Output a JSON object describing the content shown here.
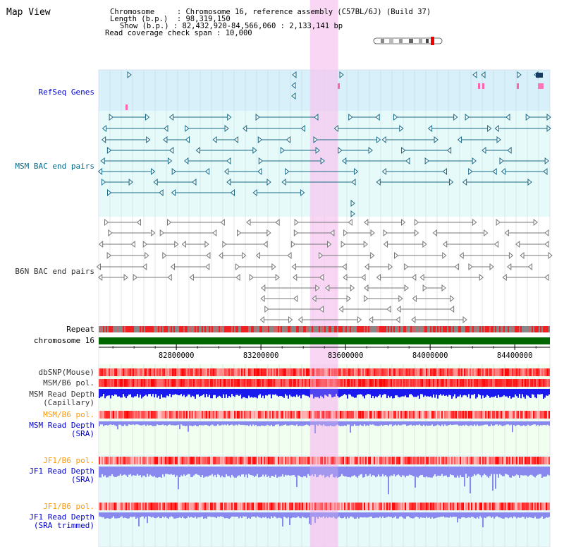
{
  "panel_title": "Map View",
  "info": {
    "chromosome_key": "Chromosome",
    "chromosome_value": "Chromosome 16, reference assembly (C57BL/6J) (Build 37)",
    "length_key": "Length (b.p.)",
    "length_value": "98,319,150",
    "show_key": "Show (b.p.)",
    "show_value": "82,432,920-84,566,060 : 2,133,141 bp",
    "coverage_key": "Read coverage check span",
    "coverage_value": "10,000"
  },
  "tracks": {
    "refseq": "RefSeq Genes",
    "msm_bac": "MSM BAC end pairs",
    "b6n_bac": "B6N BAC end pairs",
    "repeat": "Repeat",
    "chromosome": "chromosome 16",
    "dbsnp": "dbSNP(Mouse)",
    "msm_b6_pol_1": "MSM/B6 pol.",
    "msm_depth_cap_1": "MSM Read Depth",
    "msm_depth_cap_2": "(Capillary)",
    "msm_b6_pol_2": "MSM/B6 pol.",
    "msm_depth_sra_1": "MSM Read Depth",
    "msm_depth_sra_2": "(SRA)",
    "jf1_b6_pol_1": "JF1/B6 pol.",
    "jf1_depth_sra_1": "JF1 Read Depth",
    "jf1_depth_sra_2": "(SRA)",
    "jf1_b6_pol_2": "JF1/B6 pol.",
    "jf1_depth_trim_1": "JF1 Read Depth",
    "jf1_depth_trim_2": "(SRA trimmed)"
  },
  "axis": {
    "ticks": [
      "82800000",
      "83200000",
      "83600000",
      "84000000",
      "84400000"
    ],
    "tick_values": [
      82800000,
      83200000,
      83600000,
      84000000,
      84400000
    ],
    "range": [
      82432920,
      84566060
    ]
  },
  "highlight_range": [
    83432000,
    83565000
  ],
  "colors": {
    "refseq_bg": "#d8f0fa",
    "bac_bg": "#e6fafa",
    "highlight": "#f5c8f0",
    "chromosome_bar": "#006600",
    "msm_feature": "#1a6a86",
    "b6n_feature": "#777777",
    "depth_capillary": "#1a1aee",
    "depth_sra": "#8888ee"
  }
}
